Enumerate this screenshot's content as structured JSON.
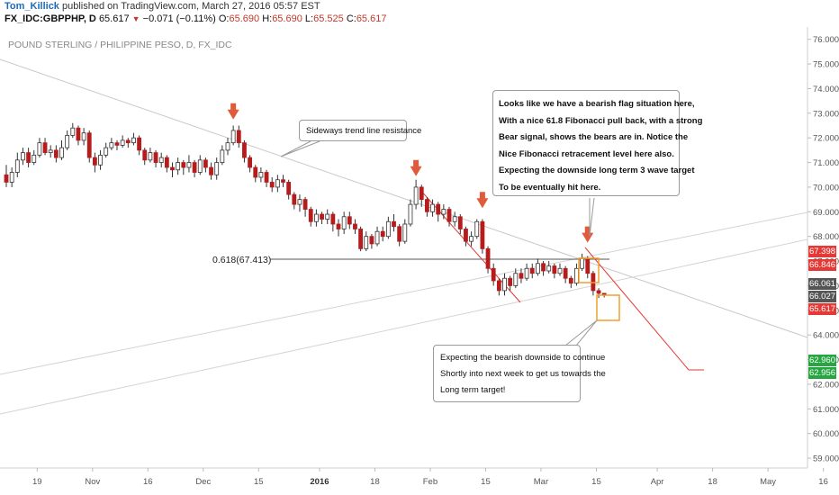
{
  "header": {
    "author": "Tom_Killick",
    "published": "published on TradingView.com, March 27, 2016 05:57 EST",
    "symbol": "FX_IDC:GBPPHP, D",
    "price": "65.617",
    "change": "−0.071 (−0.11%)",
    "open_label": "O:",
    "open": "65.690",
    "high_label": "H:",
    "high": "65.690",
    "low_label": "L:",
    "low": "65.525",
    "close_label": "C:",
    "close": "65.617"
  },
  "chart_data": {
    "type": "candlestick",
    "title": "POUND STERLING / PHILIPPINE PESO, D, FX_IDC",
    "ylim": [
      58.6,
      76.5
    ],
    "y_ticks": [
      "59.000",
      "60.000",
      "61.000",
      "62.000",
      "63.000",
      "64.000",
      "65.000",
      "66.000",
      "67.000",
      "68.000",
      "69.000",
      "70.000",
      "71.000",
      "72.000",
      "73.000",
      "74.000",
      "75.000",
      "76.000"
    ],
    "x_ticks": [
      {
        "label": "19",
        "i": 2
      },
      {
        "label": "Nov",
        "i": 12
      },
      {
        "label": "16",
        "i": 22
      },
      {
        "label": "Dec",
        "i": 32
      },
      {
        "label": "15",
        "i": 42
      },
      {
        "label": "2016",
        "i": 53
      },
      {
        "label": "18",
        "i": 63
      },
      {
        "label": "Feb",
        "i": 73
      },
      {
        "label": "15",
        "i": 83
      },
      {
        "label": "Mar",
        "i": 93
      },
      {
        "label": "15",
        "i": 103
      },
      {
        "label": "Apr",
        "i": 114
      },
      {
        "label": "18",
        "i": 124
      },
      {
        "label": "May",
        "i": 134
      },
      {
        "label": "16",
        "i": 144
      }
    ],
    "candles": [
      [
        70.5,
        70.2,
        70.9,
        70.0
      ],
      [
        70.2,
        70.6,
        70.8,
        70.0
      ],
      [
        70.6,
        71.1,
        71.4,
        70.4
      ],
      [
        71.1,
        71.4,
        71.6,
        70.9
      ],
      [
        71.4,
        71.0,
        71.6,
        70.8
      ],
      [
        71.0,
        71.3,
        71.5,
        70.9
      ],
      [
        71.3,
        71.8,
        72.0,
        71.2
      ],
      [
        71.8,
        71.4,
        72.0,
        71.3
      ],
      [
        71.4,
        71.5,
        71.7,
        71.2
      ],
      [
        71.5,
        71.2,
        71.7,
        71.0
      ],
      [
        71.2,
        71.6,
        71.9,
        71.1
      ],
      [
        71.6,
        72.1,
        72.3,
        71.5
      ],
      [
        72.1,
        72.4,
        72.6,
        72.0
      ],
      [
        72.4,
        71.9,
        72.5,
        71.7
      ],
      [
        71.9,
        72.2,
        72.4,
        71.7
      ],
      [
        72.2,
        71.2,
        72.3,
        71.0
      ],
      [
        71.2,
        70.9,
        71.4,
        70.6
      ],
      [
        70.9,
        71.3,
        71.5,
        70.7
      ],
      [
        71.3,
        71.6,
        71.8,
        71.2
      ],
      [
        71.6,
        71.8,
        72.0,
        71.5
      ],
      [
        71.8,
        71.7,
        71.9,
        71.5
      ],
      [
        71.7,
        71.9,
        72.1,
        71.6
      ],
      [
        71.9,
        71.8,
        72.0,
        71.6
      ],
      [
        71.8,
        72.0,
        72.2,
        71.7
      ],
      [
        72.0,
        71.5,
        72.1,
        71.3
      ],
      [
        71.5,
        71.1,
        71.6,
        70.9
      ],
      [
        71.1,
        71.4,
        71.6,
        71.0
      ],
      [
        71.4,
        71.0,
        71.5,
        70.8
      ],
      [
        71.0,
        71.2,
        71.4,
        70.8
      ],
      [
        71.2,
        70.8,
        71.3,
        70.6
      ],
      [
        70.8,
        70.7,
        71.0,
        70.4
      ],
      [
        70.7,
        71.0,
        71.2,
        70.5
      ],
      [
        71.0,
        70.8,
        71.1,
        70.5
      ],
      [
        70.8,
        71.0,
        71.3,
        70.6
      ],
      [
        71.0,
        70.6,
        71.1,
        70.4
      ],
      [
        70.6,
        71.1,
        71.3,
        70.5
      ],
      [
        71.1,
        70.8,
        71.2,
        70.6
      ],
      [
        70.8,
        70.5,
        71.0,
        70.3
      ],
      [
        70.5,
        71.0,
        71.2,
        70.3
      ],
      [
        71.0,
        71.5,
        71.7,
        70.9
      ],
      [
        71.5,
        71.8,
        72.0,
        71.3
      ],
      [
        71.8,
        72.3,
        72.5,
        71.7
      ],
      [
        72.3,
        71.8,
        72.5,
        71.6
      ],
      [
        71.8,
        71.2,
        71.9,
        71.0
      ],
      [
        71.2,
        70.8,
        71.3,
        70.6
      ],
      [
        70.8,
        70.4,
        70.9,
        70.2
      ],
      [
        70.4,
        70.6,
        70.8,
        70.2
      ],
      [
        70.6,
        70.2,
        70.7,
        70.0
      ],
      [
        70.2,
        70.0,
        70.4,
        69.8
      ],
      [
        70.0,
        70.3,
        70.5,
        69.8
      ],
      [
        70.3,
        70.2,
        70.5,
        70.0
      ],
      [
        70.2,
        69.7,
        70.3,
        69.5
      ],
      [
        69.7,
        69.3,
        69.8,
        69.1
      ],
      [
        69.3,
        69.5,
        69.7,
        69.0
      ],
      [
        69.5,
        69.1,
        69.6,
        68.8
      ],
      [
        69.1,
        68.6,
        69.2,
        68.4
      ],
      [
        68.6,
        68.9,
        69.1,
        68.4
      ],
      [
        68.9,
        68.7,
        69.0,
        68.5
      ],
      [
        68.7,
        68.9,
        69.1,
        68.5
      ],
      [
        68.9,
        68.5,
        69.0,
        68.2
      ],
      [
        68.5,
        68.3,
        68.7,
        68.0
      ],
      [
        68.3,
        68.8,
        69.0,
        68.1
      ],
      [
        68.8,
        68.5,
        69.0,
        68.3
      ],
      [
        68.5,
        68.3,
        68.7,
        68.1
      ],
      [
        68.3,
        67.5,
        68.4,
        67.4
      ],
      [
        67.5,
        68.0,
        68.2,
        67.4
      ],
      [
        68.0,
        67.7,
        68.1,
        67.5
      ],
      [
        67.7,
        68.2,
        68.4,
        67.6
      ],
      [
        68.2,
        68.0,
        68.4,
        67.8
      ],
      [
        68.0,
        68.6,
        68.8,
        67.9
      ],
      [
        68.6,
        68.4,
        68.9,
        68.2
      ],
      [
        68.4,
        67.8,
        68.5,
        67.6
      ],
      [
        67.8,
        68.5,
        68.7,
        67.7
      ],
      [
        68.5,
        69.3,
        69.5,
        68.4
      ],
      [
        69.3,
        70.0,
        70.3,
        69.1
      ],
      [
        70.0,
        69.5,
        70.1,
        69.2
      ],
      [
        69.5,
        69.0,
        69.6,
        68.8
      ],
      [
        69.0,
        69.3,
        69.5,
        68.8
      ],
      [
        69.3,
        68.9,
        69.4,
        68.6
      ],
      [
        68.9,
        69.1,
        69.3,
        68.7
      ],
      [
        69.1,
        68.6,
        69.2,
        68.4
      ],
      [
        68.6,
        68.8,
        69.0,
        68.4
      ],
      [
        68.8,
        68.3,
        68.9,
        68.1
      ],
      [
        68.3,
        67.8,
        68.4,
        67.6
      ],
      [
        67.8,
        68.0,
        68.2,
        67.6
      ],
      [
        68.0,
        68.6,
        68.7,
        67.9
      ],
      [
        68.6,
        67.5,
        68.7,
        67.3
      ],
      [
        67.5,
        66.7,
        67.6,
        66.5
      ],
      [
        66.7,
        66.2,
        66.9,
        66.0
      ],
      [
        66.2,
        65.8,
        66.3,
        65.6
      ],
      [
        65.8,
        66.3,
        66.5,
        65.6
      ],
      [
        66.3,
        66.0,
        66.4,
        65.8
      ],
      [
        66.0,
        66.5,
        66.7,
        65.9
      ],
      [
        66.5,
        66.3,
        66.7,
        66.1
      ],
      [
        66.3,
        66.7,
        66.9,
        66.2
      ],
      [
        66.7,
        66.5,
        66.9,
        66.3
      ],
      [
        66.5,
        66.9,
        67.1,
        66.4
      ],
      [
        66.9,
        66.6,
        67.0,
        66.4
      ],
      [
        66.6,
        66.8,
        67.0,
        66.5
      ],
      [
        66.8,
        66.5,
        66.9,
        66.3
      ],
      [
        66.5,
        66.7,
        66.9,
        66.4
      ],
      [
        66.7,
        66.3,
        66.8,
        66.1
      ],
      [
        66.3,
        66.1,
        66.4,
        65.9
      ],
      [
        66.1,
        66.7,
        66.9,
        66.0
      ],
      [
        66.7,
        67.1,
        67.3,
        66.6
      ],
      [
        67.1,
        66.5,
        67.2,
        66.3
      ],
      [
        66.5,
        65.8,
        66.6,
        65.6
      ],
      [
        65.8,
        65.69,
        65.9,
        65.5
      ],
      [
        65.69,
        65.617,
        65.69,
        65.525
      ]
    ],
    "annotations": {
      "fib_label": "0.618(67.413)",
      "callout_resistance": "Sideways trend line resistance",
      "callout_top": [
        "Looks like we have a bearish flag situation here,",
        "With a nice 61.8 Fibonacci pull back, with a strong",
        "Bear signal, shows the bears are in. Notice the",
        "Nice Fibonacci retracement level here also.",
        "Expecting the downside long term 3 wave target",
        "To be eventually hit here."
      ],
      "callout_bottom": [
        "Expecting the bearish downside to continue",
        "Shortly into next week to get us towards the",
        "Long term target!"
      ]
    },
    "price_tags": [
      {
        "label": "67.398",
        "color": "#e53935",
        "value": 67.398
      },
      {
        "label": "66.846",
        "color": "#e53935",
        "value": 66.846
      },
      {
        "label": "66.061",
        "color": "#555555",
        "value": 66.061
      },
      {
        "label": "66.027",
        "color": "#555555",
        "value": 66.027
      },
      {
        "label": "65.617",
        "color": "#e53935",
        "value": 65.617
      },
      {
        "label": "62.960",
        "color": "#26a641",
        "value": 62.96
      },
      {
        "label": "62.956",
        "color": "#26a641",
        "value": 62.956
      }
    ],
    "colors": {
      "up_body": "#ffffff",
      "down_body": "#b71c1c",
      "wick": "#333333",
      "arrow": "#e05b3a",
      "highlight_box": "#f0a030",
      "target_line": "#e53935"
    }
  }
}
